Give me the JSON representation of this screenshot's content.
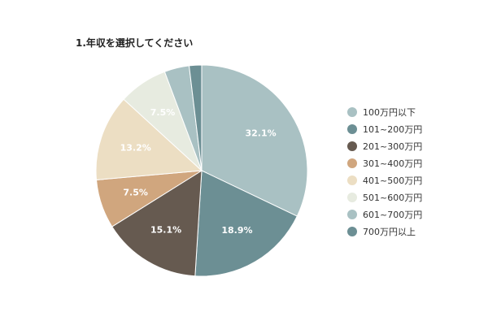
{
  "chart_data": {
    "type": "pie",
    "title": "1.年収を選択してください",
    "categories": [
      "100万円以下",
      "101~200万円",
      "201~300万円",
      "301~400万円",
      "401~500万円",
      "501~600万円",
      "601~700万円",
      "700万円以上"
    ],
    "values": [
      32.1,
      18.9,
      15.1,
      7.5,
      13.2,
      7.5,
      3.8,
      1.9
    ],
    "data_labels": [
      "32.1%",
      "18.9%",
      "15.1%",
      "7.5%",
      "13.2%",
      "7.5%",
      "",
      ""
    ],
    "colors": [
      "#a9c1c3",
      "#6c8f94",
      "#665a50",
      "#d0a67e",
      "#ecdec3",
      "#e7ebe0",
      "#a9c1c3",
      "#6c8f94"
    ],
    "start_angle_deg": 0,
    "direction": "clockwise",
    "legend_position": "right"
  }
}
